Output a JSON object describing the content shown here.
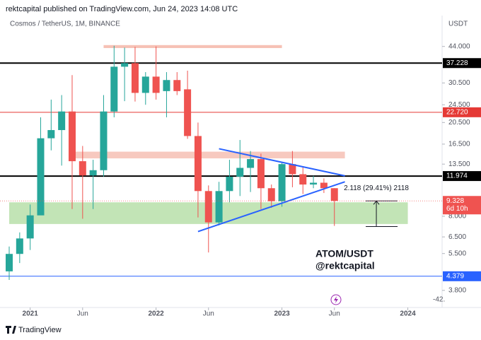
{
  "header": {
    "publisher": "rektcapital published on TradingView.com, Jun 24, 2023 14:08 UTC"
  },
  "chart_data": {
    "type": "candlestick",
    "title": "Cosmos / TetherUS, 1M, BINANCE",
    "y_axis_label": "USDT",
    "log_scale": true,
    "up_color": "#26a69a",
    "down_color": "#ef5350",
    "x": [
      "2020-11",
      "2020-12",
      "2021-01",
      "2021-02",
      "2021-03",
      "2021-04",
      "2021-05",
      "2021-06",
      "2021-07",
      "2021-08",
      "2021-09",
      "2021-10",
      "2021-11",
      "2021-12",
      "2022-01",
      "2022-02",
      "2022-03",
      "2022-04",
      "2022-05",
      "2022-06",
      "2022-07",
      "2022-08",
      "2022-09",
      "2022-10",
      "2022-11",
      "2022-12",
      "2023-01",
      "2023-02",
      "2023-03",
      "2023-04",
      "2023-05",
      "2023-06"
    ],
    "open": [
      4.6,
      5.48,
      6.4,
      8.07,
      17.5,
      19.0,
      22.9,
      13.9,
      12.05,
      12.7,
      22.9,
      35.9,
      37.2,
      27.6,
      32.5,
      28.1,
      31.4,
      28.6,
      17.9,
      10.3,
      7.52,
      10.3,
      11.9,
      13.0,
      14.2,
      10.6,
      9.3,
      13.5,
      12.2,
      11.0,
      11.2,
      10.6
    ],
    "high": [
      5.9,
      6.8,
      9.0,
      21.6,
      25.8,
      27.0,
      33.0,
      16.2,
      14.1,
      27.0,
      44.3,
      43.5,
      43.8,
      34.0,
      44.0,
      34.0,
      34.0,
      34.5,
      20.5,
      10.9,
      11.3,
      14.1,
      17.2,
      15.4,
      15.0,
      11.0,
      13.8,
      15.4,
      13.2,
      12.0,
      11.7,
      10.6
    ],
    "low": [
      4.22,
      5.0,
      5.7,
      8.5,
      15.5,
      13.3,
      8.6,
      7.8,
      8.6,
      11.9,
      21.6,
      25.4,
      25.3,
      24.5,
      25.8,
      21.6,
      27.0,
      17.4,
      7.9,
      5.56,
      7.3,
      9.2,
      9.8,
      10.2,
      8.6,
      8.7,
      8.8,
      10.7,
      10.0,
      10.6,
      10.1,
      7.26
    ],
    "close": [
      5.48,
      6.4,
      8.07,
      17.5,
      19.0,
      22.9,
      13.9,
      12.05,
      12.7,
      22.9,
      35.9,
      37.2,
      27.6,
      32.5,
      27.6,
      31.4,
      28.1,
      17.9,
      10.3,
      7.52,
      10.3,
      11.9,
      13.0,
      14.2,
      10.6,
      9.3,
      13.5,
      12.2,
      11.0,
      11.2,
      10.6,
      9.33
    ],
    "ylim": [
      3.2,
      60
    ],
    "yticks": [
      {
        "value": 44,
        "label": "44.000"
      },
      {
        "value": 30.5,
        "label": "30.500"
      },
      {
        "value": 24.5,
        "label": "24.500"
      },
      {
        "value": 20.5,
        "label": "20.500"
      },
      {
        "value": 16.5,
        "label": "16.500"
      },
      {
        "value": 13.5,
        "label": "13.500"
      },
      {
        "value": 8,
        "label": "8.000"
      },
      {
        "value": 6.5,
        "label": "6.500"
      },
      {
        "value": 5.5,
        "label": "5.500"
      },
      {
        "value": 3.8,
        "label": "3.800"
      }
    ],
    "xticks": [
      {
        "value": "2021-01",
        "label": "2021"
      },
      {
        "value": "2021-06",
        "label": "Jun"
      },
      {
        "value": "2022-01",
        "label": "2022"
      },
      {
        "value": "2022-06",
        "label": "Jun"
      },
      {
        "value": "2023-01",
        "label": "2023"
      },
      {
        "value": "2023-06",
        "label": "Jun"
      },
      {
        "value": "2024-01",
        "label": "2024"
      }
    ],
    "levels": [
      {
        "value": 37.228,
        "color": "#000000",
        "width": 2
      },
      {
        "value": 22.72,
        "label": "22.720",
        "color": "#e53935",
        "width": 1
      },
      {
        "value": 11.974,
        "color": "#000000",
        "width": 2
      },
      {
        "value": 4.379,
        "color": "#2962ff",
        "width": 1
      }
    ],
    "last_price": {
      "value": 9.328,
      "countdown": "6d 10h",
      "color": "#ef5350"
    },
    "zones": [
      {
        "from": "2021-08",
        "to": "2023-01",
        "low": 43.3,
        "high": 44.6,
        "color": "#f4b6a8"
      },
      {
        "from": "2021-05",
        "to": "2023-07",
        "low": 14.3,
        "high": 15.3,
        "color": "#f6c0b4"
      },
      {
        "from": "2020-11",
        "to": "2024-01",
        "low": 7.4,
        "high": 9.2,
        "color": "#b7dfa9"
      }
    ],
    "trendlines": [
      {
        "points": [
          [
            "2022-07",
            15.75
          ],
          [
            "2023-07",
            12.0
          ]
        ],
        "color": "#2962ff"
      },
      {
        "points": [
          [
            "2022-05",
            6.86
          ],
          [
            "2023-07",
            11.3
          ]
        ],
        "color": "#2962ff"
      }
    ],
    "measure": {
      "date": "2023-10",
      "from": 9.328,
      "to": 7.21,
      "label": "2.118 (29.41%) 2118"
    },
    "annotations": [
      "ATOM/USDT",
      "@rektcapital"
    ],
    "axis_fragment": "-42."
  },
  "footer": {
    "brand": "TradingView"
  }
}
